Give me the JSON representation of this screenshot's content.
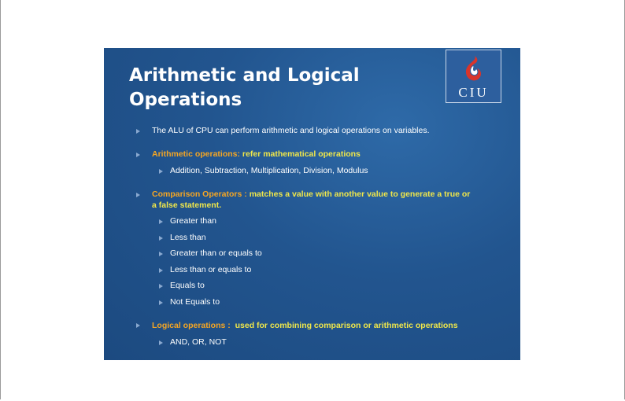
{
  "slide": {
    "title_line1": "Arithmetic and Logical",
    "title_line2": "Operations",
    "logo_text": "CIU",
    "bullet1": "The ALU of CPU can perform arithmetic and logical operations on variables.",
    "bullet2_label": "Arithmetic operations:",
    "bullet2_text": " refer mathematical operations",
    "bullet2_sub": "Addition, Subtraction, Multiplication, Division, Modulus",
    "bullet3_label": "Comparison Operators :",
    "bullet3_text_line1": " matches a value with another value to generate a true or",
    "bullet3_text_line2": "a false statement.",
    "comparison_items": [
      "Greater than",
      "Less than",
      "Greater than or equals to",
      "Less than or equals to",
      "Equals to",
      "Not Equals to"
    ],
    "bullet4_label": "Logical operations :",
    "bullet4_text": "  used for combining comparison or arithmetic operations",
    "bullet4_sub": "AND, OR, NOT"
  },
  "colors": {
    "slide_background": "#22558f",
    "label_orange": "#f5a623",
    "text_yellow": "#f0e74a",
    "logo_flame": "#d9342b"
  }
}
